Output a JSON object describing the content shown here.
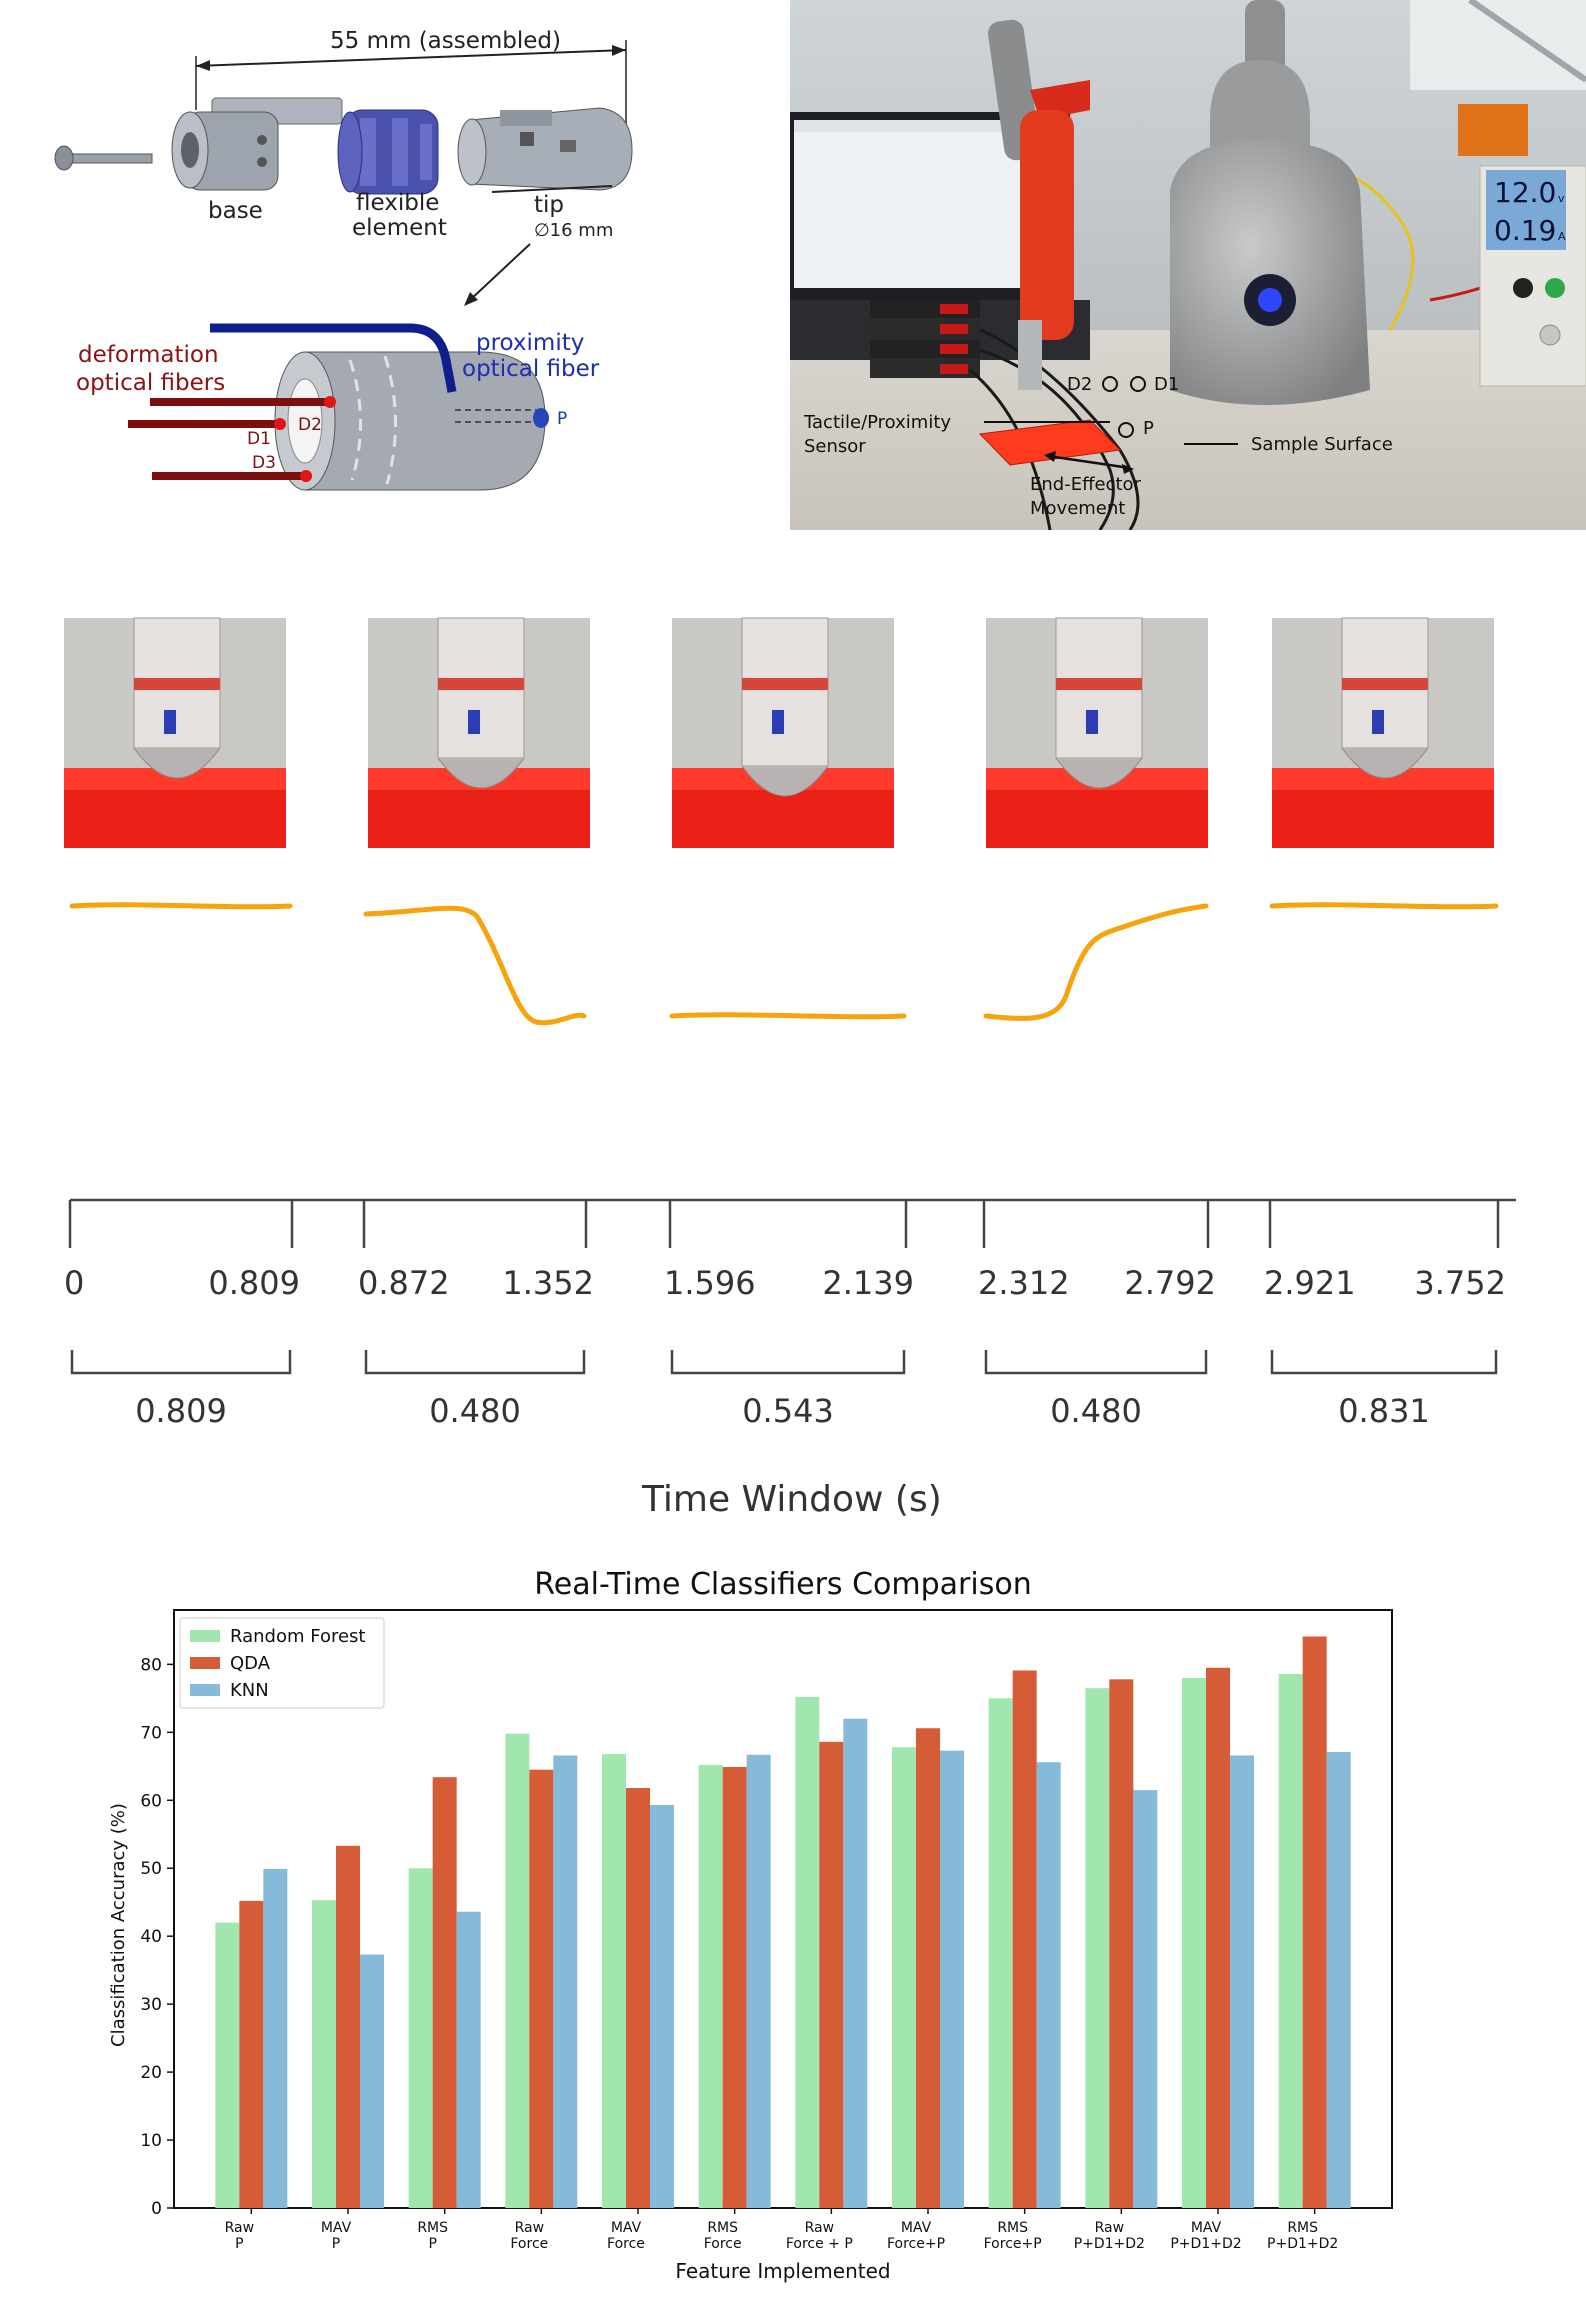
{
  "diagram": {
    "dimension_label": "55 mm (assembled)",
    "parts": [
      "base",
      "flexible\nelement",
      "tip"
    ],
    "tip_diameter": "∅16 mm",
    "deformation_label": "deformation\noptical fibers",
    "proximity_label": "proximity\noptical fiber",
    "markers": {
      "d1": "D1",
      "d2": "D2",
      "d3": "D3",
      "p": "P"
    }
  },
  "photo": {
    "display_volts": "12.0",
    "display_volt_unit": "v",
    "display_amps": "0.19",
    "display_amp_unit": "A",
    "labels": {
      "d2": "D2",
      "d1": "D1",
      "p": "P",
      "sensor": "Tactile/Proximity\nSensor",
      "surface": "Sample Surface",
      "movement": "End-Effector\nMovement"
    }
  },
  "timeline": {
    "windows": [
      {
        "start": "0",
        "end": "0.809",
        "duration": "0.809",
        "level": "high",
        "shape": "flat"
      },
      {
        "start": "0.872",
        "end": "1.352",
        "duration": "0.480",
        "level": "high-to-low",
        "shape": "falling"
      },
      {
        "start": "1.596",
        "end": "2.139",
        "duration": "0.543",
        "level": "low",
        "shape": "flat"
      },
      {
        "start": "2.312",
        "end": "2.792",
        "duration": "0.480",
        "level": "low-to-high",
        "shape": "rising"
      },
      {
        "start": "2.921",
        "end": "3.752",
        "duration": "0.831",
        "level": "high",
        "shape": "flat"
      }
    ],
    "axis_title": "Time Window (s)",
    "signal_color": "#f5a30f"
  },
  "chart_data": {
    "type": "bar",
    "title": "Real-Time Classifiers Comparison",
    "xlabel": "Feature Implemented",
    "ylabel": "Classification Accuracy (%)",
    "ylim": [
      0,
      88
    ],
    "yticks": [
      0,
      10,
      20,
      30,
      40,
      50,
      60,
      70,
      80
    ],
    "legend_position": "top-left",
    "categories": [
      [
        "Raw",
        "P"
      ],
      [
        "MAV",
        "P"
      ],
      [
        "RMS",
        "P"
      ],
      [
        "Raw",
        "Force"
      ],
      [
        "MAV",
        "Force"
      ],
      [
        "RMS",
        "Force"
      ],
      [
        "Raw",
        "Force + P"
      ],
      [
        "MAV",
        "Force+P"
      ],
      [
        "RMS",
        "Force+P"
      ],
      [
        "Raw",
        "P+D1+D2"
      ],
      [
        "MAV",
        "P+D1+D2"
      ],
      [
        "RMS",
        "P+D1+D2"
      ]
    ],
    "series": [
      {
        "name": "Random Forest",
        "color": "#a1e6ae",
        "values": [
          42.0,
          45.3,
          50.0,
          69.8,
          66.8,
          65.2,
          75.2,
          67.8,
          75.0,
          76.5,
          78.0,
          78.6
        ]
      },
      {
        "name": "QDA",
        "color": "#d55c37",
        "values": [
          45.2,
          53.3,
          63.4,
          64.5,
          61.8,
          64.9,
          68.6,
          70.6,
          79.1,
          77.8,
          79.5,
          84.1
        ]
      },
      {
        "name": "KNN",
        "color": "#86bad9",
        "values": [
          49.9,
          37.3,
          43.6,
          66.6,
          59.3,
          66.7,
          72.0,
          67.3,
          65.6,
          61.5,
          66.6,
          67.1
        ]
      }
    ]
  }
}
